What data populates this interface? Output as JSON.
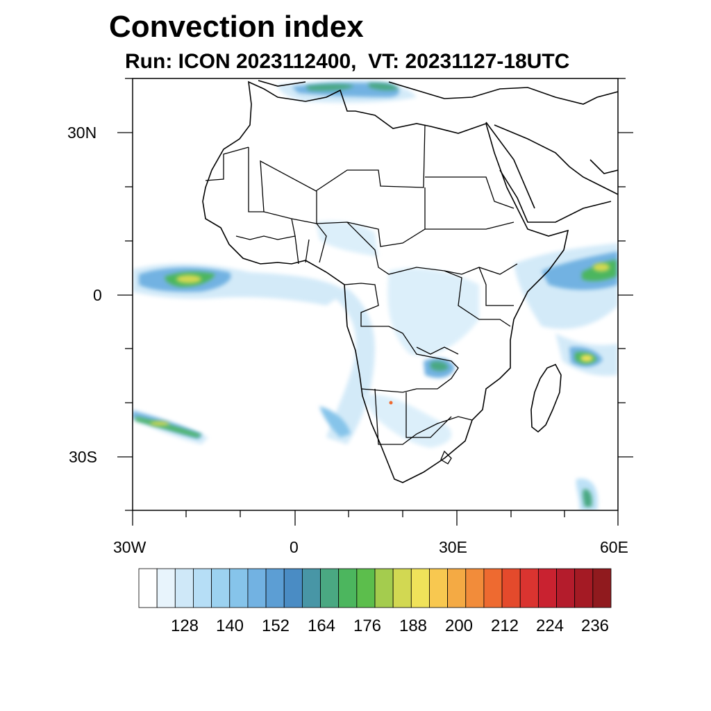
{
  "title": "Convection index",
  "subtitle": "Run: ICON 2023112400,  VT: 20231127-18UTC",
  "map": {
    "region": "Africa",
    "lon_range": [
      -30,
      60
    ],
    "lat_range": [
      -40,
      40
    ],
    "x_tick_labels": [
      "30W",
      "0",
      "30E",
      "60E"
    ],
    "y_tick_labels": [
      "30N",
      "0",
      "30S"
    ]
  },
  "colorbar": {
    "labels": [
      "128",
      "140",
      "152",
      "164",
      "176",
      "188",
      "200",
      "212",
      "224",
      "236"
    ],
    "colors": [
      "#ffffff",
      "#e8f4fc",
      "#cfe8f8",
      "#b6def6",
      "#9cd2f0",
      "#86c4ea",
      "#72b2e2",
      "#5c9ed4",
      "#4a8cc4",
      "#4896a6",
      "#4aa882",
      "#4cb65e",
      "#5cbe4c",
      "#a4cc4e",
      "#d2d852",
      "#f0e25a",
      "#f8c850",
      "#f4aa44",
      "#f28c3a",
      "#ee6a30",
      "#e44a2c",
      "#da3430",
      "#c92230",
      "#b41c2c",
      "#a41a24",
      "#901a1e"
    ]
  }
}
